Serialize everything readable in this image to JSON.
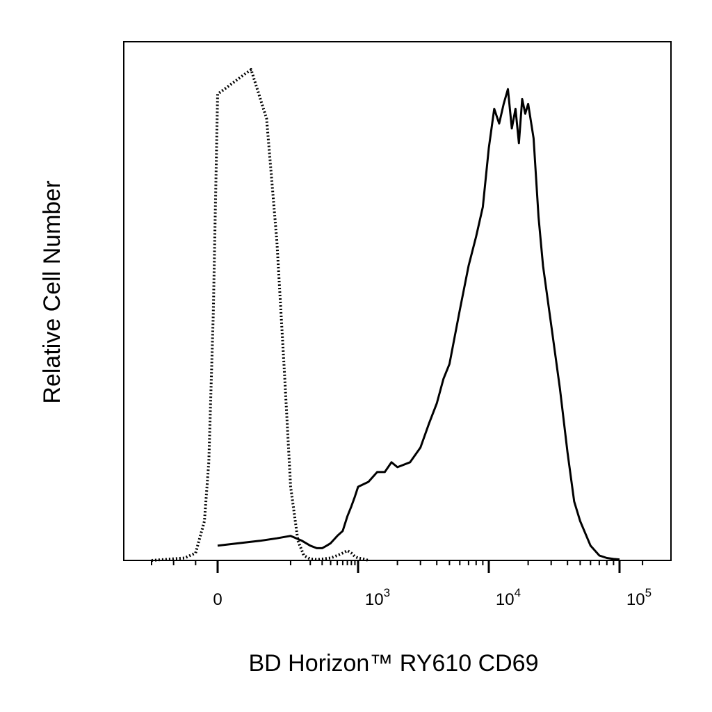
{
  "chart_data": {
    "type": "line",
    "title": "",
    "xlabel": "BD Horizon™ RY610 CD69",
    "ylabel": "Relative Cell Number",
    "x_scale": "biexponential",
    "xlim": [
      -300,
      150000
    ],
    "ylim": [
      0,
      100
    ],
    "grid": false,
    "legend": "none",
    "x_ticks": [
      {
        "value": 0,
        "base": "0",
        "exp": ""
      },
      {
        "value": 1000,
        "base": "10",
        "exp": "3"
      },
      {
        "value": 10000,
        "base": "10",
        "exp": "4"
      },
      {
        "value": 100000,
        "base": "10",
        "exp": "5"
      }
    ],
    "series": [
      {
        "style": "dotted",
        "color": "#000000",
        "x": [
          -300,
          -150,
          -100,
          -60,
          -40,
          -20,
          0,
          20,
          40,
          60,
          80,
          100,
          130,
          160,
          200,
          260,
          400,
          500,
          600,
          700,
          800,
          900,
          1000,
          1100,
          1200
        ],
        "y": [
          0,
          0.5,
          1.5,
          8,
          20,
          50,
          95,
          100,
          90,
          65,
          38,
          15,
          4,
          1,
          0.3,
          0.2,
          0.5,
          1,
          1.5,
          2,
          1.5,
          0.8,
          0.5,
          0.3,
          0
        ]
      },
      {
        "style": "solid",
        "color": "#000000",
        "x": [
          0,
          30,
          60,
          100,
          150,
          200,
          250,
          300,
          350,
          400,
          500,
          600,
          700,
          800,
          900,
          1000,
          1200,
          1400,
          1600,
          1800,
          2000,
          2500,
          3000,
          3500,
          4000,
          4500,
          5000,
          6000,
          7000,
          8000,
          9000,
          10000,
          11000,
          12000,
          13000,
          14000,
          15000,
          16000,
          17000,
          18000,
          19000,
          20000,
          22000,
          24000,
          26000,
          30000,
          35000,
          40000,
          45000,
          50000,
          60000,
          70000,
          80000,
          90000,
          100000
        ],
        "y": [
          3,
          4,
          4.5,
          5,
          4,
          3,
          2.5,
          2.5,
          3,
          3.5,
          5,
          6,
          9,
          11,
          13,
          15,
          16,
          18,
          18,
          20,
          19,
          20,
          23,
          28,
          32,
          37,
          40,
          51,
          60,
          66,
          72,
          84,
          92,
          89,
          93,
          96,
          88,
          92,
          85,
          94,
          91,
          93,
          86,
          70,
          60,
          48,
          35,
          22,
          12,
          8,
          3,
          1,
          0.5,
          0.3,
          0.2
        ]
      }
    ]
  }
}
